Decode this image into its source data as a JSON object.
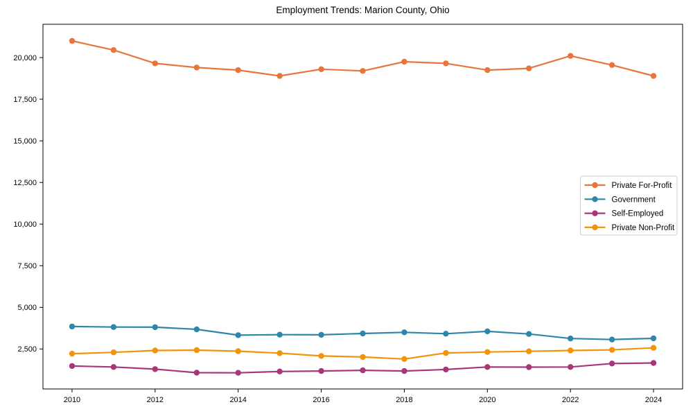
{
  "chart_data": {
    "type": "line",
    "title": "Employment Trends: Marion County, Ohio",
    "xlabel": "",
    "ylabel": "",
    "x": [
      2010,
      2011,
      2012,
      2013,
      2014,
      2015,
      2016,
      2017,
      2018,
      2019,
      2020,
      2021,
      2022,
      2023,
      2024
    ],
    "xticks": [
      2010,
      2012,
      2014,
      2016,
      2018,
      2020,
      2022,
      2024
    ],
    "yticks": [
      2500,
      5000,
      7500,
      10000,
      12500,
      15000,
      17500,
      20000
    ],
    "ytick_labels": [
      "2,500",
      "5,000",
      "7,500",
      "10,000",
      "12,500",
      "15,000",
      "17,500",
      "20,000"
    ],
    "xlim": [
      2009.3,
      2024.7
    ],
    "ylim": [
      100,
      22000
    ],
    "grid": false,
    "legend_position": "center right",
    "series": [
      {
        "name": "Private For-Profit",
        "color": "#E6763C",
        "values": [
          21000,
          20450,
          19650,
          19400,
          19250,
          18900,
          19300,
          19200,
          19750,
          19650,
          19250,
          19350,
          20100,
          19550,
          18900
        ]
      },
      {
        "name": "Government",
        "color": "#2E86A8",
        "values": [
          3850,
          3820,
          3810,
          3680,
          3330,
          3360,
          3350,
          3430,
          3500,
          3420,
          3560,
          3400,
          3130,
          3070,
          3140
        ]
      },
      {
        "name": "Self-Employed",
        "color": "#A63779",
        "values": [
          1480,
          1420,
          1290,
          1080,
          1070,
          1150,
          1180,
          1220,
          1180,
          1270,
          1420,
          1410,
          1420,
          1630,
          1660
        ]
      },
      {
        "name": "Private Non-Profit",
        "color": "#F2940B",
        "values": [
          2220,
          2300,
          2410,
          2430,
          2370,
          2250,
          2080,
          2020,
          1900,
          2260,
          2320,
          2360,
          2410,
          2450,
          2570
        ]
      }
    ]
  }
}
